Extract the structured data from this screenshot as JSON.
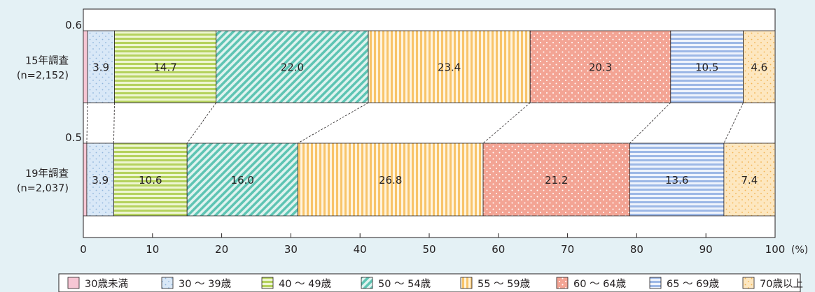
{
  "chart_data": {
    "type": "bar",
    "orientation": "horizontal",
    "stacked": true,
    "xlim": [
      0,
      100
    ],
    "x_unit": "(%)",
    "x_ticks": [
      "0",
      "10",
      "20",
      "30",
      "40",
      "50",
      "60",
      "70",
      "80",
      "90",
      "100"
    ],
    "categories": [
      {
        "label": "15年調査",
        "sub": "(n=2,152)",
        "small_value_label": "0.6"
      },
      {
        "label": "19年調査",
        "sub": "(n=2,037)",
        "small_value_label": "0.5"
      }
    ],
    "series": [
      {
        "name": "30歳未満",
        "color": "#f6c6d4",
        "pattern": "solid",
        "values": [
          0.6,
          0.5
        ]
      },
      {
        "name": "30 ～ 39歳",
        "color": "#d9e8f7",
        "pattern": "dots-blue",
        "values": [
          3.9,
          3.9
        ]
      },
      {
        "name": "40 ～ 49歳",
        "color": "#d2e59a",
        "pattern": "hstripes-green",
        "values": [
          14.7,
          10.6
        ]
      },
      {
        "name": "50 ～ 54歳",
        "color": "#aee0d8",
        "pattern": "diag-teal",
        "values": [
          22.0,
          16.0
        ]
      },
      {
        "name": "55 ～ 59歳",
        "color": "#fde3b3",
        "pattern": "vstripes-orange",
        "values": [
          23.4,
          26.8
        ]
      },
      {
        "name": "60 ～ 64歳",
        "color": "#f3a494",
        "pattern": "dots-white",
        "values": [
          20.3,
          21.2
        ]
      },
      {
        "name": "65 ～ 69歳",
        "color": "#cfdcf4",
        "pattern": "hstripes-blue",
        "values": [
          10.5,
          13.6
        ]
      },
      {
        "name": "70歳以上",
        "color": "#fde7c0",
        "pattern": "dots-orange",
        "values": [
          4.6,
          7.4
        ]
      }
    ],
    "data_labels": [
      [
        "",
        "3.9",
        "14.7",
        "22.0",
        "23.4",
        "20.3",
        "10.5",
        "4.6"
      ],
      [
        "",
        "3.9",
        "10.6",
        "16.0",
        "26.8",
        "21.2",
        "13.6",
        "7.4"
      ]
    ],
    "connector_lines": true,
    "legend_position": "bottom"
  }
}
